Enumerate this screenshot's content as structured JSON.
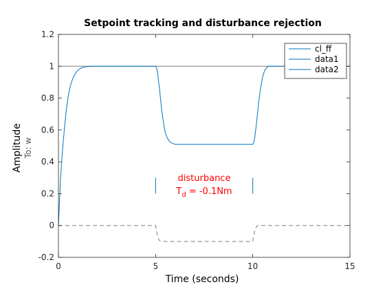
{
  "chart_data": {
    "type": "line",
    "title": "Setpoint tracking and disturbance rejection",
    "xlabel": "Time (seconds)",
    "ylabel": "Amplitude",
    "ylabel_sub": "To: w",
    "xlim": [
      0,
      15
    ],
    "ylim": [
      -0.2,
      1.2
    ],
    "xticks": [
      "0",
      "5",
      "10",
      "15"
    ],
    "yticks": [
      "-0.2",
      "0",
      "0.2",
      "0.4",
      "0.6",
      "0.8",
      "1",
      "1.2"
    ],
    "grid": false,
    "legend_position": "top-right",
    "reference_line": {
      "y": 1,
      "color": "#7f7f7f"
    },
    "series": [
      {
        "name": "cl_ff",
        "color": "#0072bd",
        "style": "solid",
        "x": [
          0,
          0.1,
          0.2,
          0.3,
          0.4,
          0.5,
          0.6,
          0.7,
          0.8,
          0.9,
          1.0,
          1.1,
          1.2,
          1.3,
          1.5,
          1.8,
          2.2,
          3.0,
          4.0,
          5.0,
          5.05,
          5.1,
          5.2,
          5.3,
          5.4,
          5.5,
          5.6,
          5.7,
          5.8,
          5.9,
          6.0,
          6.2,
          6.5,
          7.0,
          8.0,
          9.0,
          10.0,
          10.05,
          10.1,
          10.2,
          10.3,
          10.4,
          10.5,
          10.6,
          10.7,
          10.8,
          10.9,
          11.0,
          11.2,
          11.5,
          12.0,
          13.0,
          14.0,
          15.0
        ],
        "y": [
          0,
          0.28,
          0.46,
          0.6,
          0.72,
          0.81,
          0.87,
          0.91,
          0.94,
          0.96,
          0.975,
          0.985,
          0.99,
          0.995,
          0.998,
          1.0,
          1.0,
          1.0,
          1.0,
          1.0,
          0.99,
          0.96,
          0.86,
          0.74,
          0.65,
          0.58,
          0.55,
          0.53,
          0.52,
          0.515,
          0.51,
          0.51,
          0.51,
          0.51,
          0.51,
          0.51,
          0.51,
          0.52,
          0.55,
          0.65,
          0.77,
          0.86,
          0.93,
          0.97,
          0.99,
          1.0,
          1.0,
          1.0,
          1.0,
          1.0,
          1.0,
          1.0,
          1.0,
          1.0
        ]
      },
      {
        "name": "data1",
        "color": "#0072bd",
        "style": "solid",
        "x": [
          5.0,
          5.0
        ],
        "y": [
          0.2,
          0.3
        ]
      },
      {
        "name": "data2",
        "color": "#0072bd",
        "style": "solid",
        "x": [
          10.0,
          10.0
        ],
        "y": [
          0.2,
          0.3
        ]
      },
      {
        "color": "#7f7f7f",
        "style": "dashed",
        "legend": false,
        "x": [
          0,
          5.0,
          5.1,
          5.2,
          5.3,
          10.0,
          10.1,
          10.2,
          10.3,
          15.0
        ],
        "y": [
          0,
          0,
          -0.07,
          -0.095,
          -0.1,
          -0.1,
          -0.03,
          -0.005,
          0,
          0
        ]
      }
    ],
    "annotation": {
      "line1": "disturbance",
      "line2_main": "T",
      "line2_sub": "d",
      "line2_rest": " = -0.1Nm",
      "color": "#ff0000",
      "x": 7.5,
      "y": 0.28
    }
  }
}
